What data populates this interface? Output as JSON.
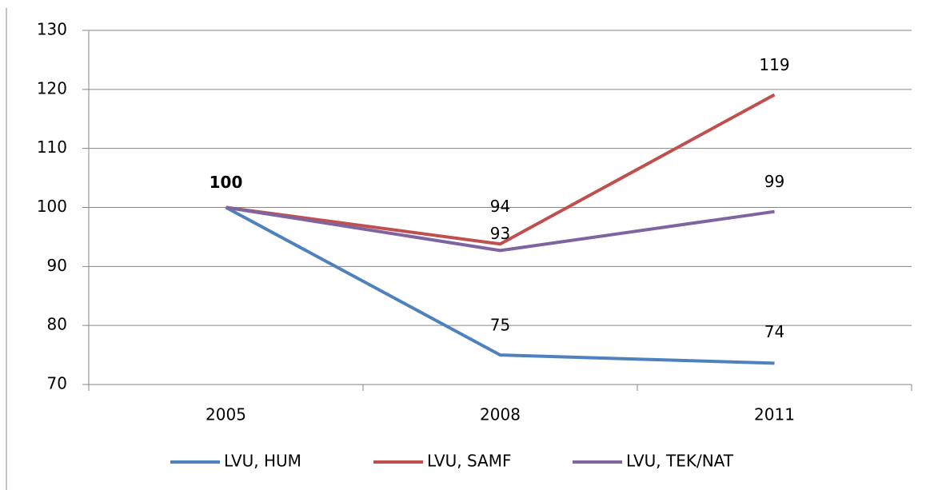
{
  "chart_data": {
    "type": "line",
    "categories": [
      "2005",
      "2008",
      "2011"
    ],
    "series": [
      {
        "name": "LVU, HUM",
        "color": "#4f81bd",
        "values": [
          100,
          75,
          73.6
        ],
        "value_labels": [
          "100",
          "75",
          "74"
        ]
      },
      {
        "name": "LVU, SAMF",
        "color": "#c0504d",
        "values": [
          100,
          93.8,
          119.1
        ],
        "value_labels": [
          null,
          "94",
          "119"
        ]
      },
      {
        "name": "LVU, TEK/NAT",
        "color": "#8064a2",
        "values": [
          100,
          92.7,
          99.3
        ],
        "value_labels": [
          null,
          "93",
          "99"
        ]
      }
    ],
    "ylim": [
      70,
      130
    ],
    "yticks": [
      70,
      80,
      90,
      100,
      110,
      120,
      130
    ],
    "grid": true,
    "legend": "bottom"
  }
}
